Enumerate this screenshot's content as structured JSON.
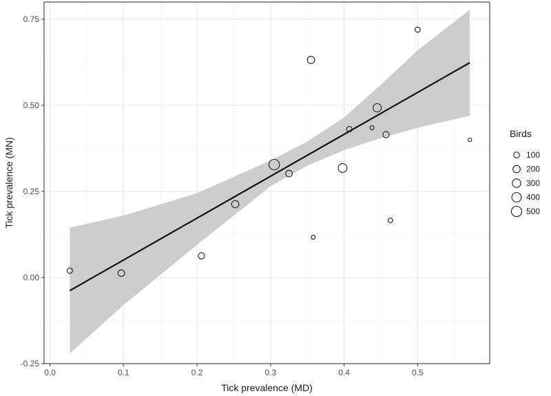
{
  "chart_data": {
    "type": "scatter",
    "title": "",
    "xlabel": "Tick prevalence (MD)",
    "ylabel": "Tick prevalence (MN)",
    "xlim": [
      -0.008,
      0.598
    ],
    "ylim": [
      -0.25,
      0.8
    ],
    "x_ticks": [
      0.0,
      0.1,
      0.2,
      0.3,
      0.4,
      0.5
    ],
    "x_tick_labels": [
      "0.0",
      "0.1",
      "0.2",
      "0.3",
      "0.4",
      "0.5"
    ],
    "y_ticks": [
      -0.25,
      0.0,
      0.25,
      0.5,
      0.75
    ],
    "y_tick_labels": [
      "-0.25",
      "0.00",
      "0.25",
      "0.50",
      "0.75"
    ],
    "grid": true,
    "points": [
      {
        "x": 0.027,
        "y": 0.02,
        "birds": 80
      },
      {
        "x": 0.097,
        "y": 0.013,
        "birds": 150
      },
      {
        "x": 0.206,
        "y": 0.063,
        "birds": 130
      },
      {
        "x": 0.252,
        "y": 0.213,
        "birds": 200
      },
      {
        "x": 0.305,
        "y": 0.328,
        "birds": 520
      },
      {
        "x": 0.325,
        "y": 0.302,
        "birds": 150
      },
      {
        "x": 0.355,
        "y": 0.632,
        "birds": 200
      },
      {
        "x": 0.358,
        "y": 0.117,
        "birds": 25
      },
      {
        "x": 0.398,
        "y": 0.318,
        "birds": 330
      },
      {
        "x": 0.407,
        "y": 0.431,
        "birds": 80
      },
      {
        "x": 0.438,
        "y": 0.435,
        "birds": 25
      },
      {
        "x": 0.445,
        "y": 0.493,
        "birds": 280
      },
      {
        "x": 0.457,
        "y": 0.415,
        "birds": 130
      },
      {
        "x": 0.463,
        "y": 0.166,
        "birds": 45
      },
      {
        "x": 0.5,
        "y": 0.72,
        "birds": 70
      },
      {
        "x": 0.571,
        "y": 0.4,
        "birds": 15
      }
    ],
    "fit_line": {
      "x": [
        0.027,
        0.571
      ],
      "y": [
        -0.038,
        0.624
      ]
    },
    "confidence_band": {
      "x": [
        0.027,
        0.1,
        0.2,
        0.3,
        0.35,
        0.4,
        0.45,
        0.5,
        0.571
      ],
      "lower": [
        -0.22,
        -0.08,
        0.095,
        0.265,
        0.325,
        0.37,
        0.405,
        0.435,
        0.47
      ],
      "upper": [
        0.145,
        0.18,
        0.245,
        0.34,
        0.395,
        0.465,
        0.56,
        0.66,
        0.778
      ]
    },
    "legend": {
      "title": "Birds",
      "position": "right",
      "entries": [
        {
          "label": "100",
          "birds": 100
        },
        {
          "label": "200",
          "birds": 200
        },
        {
          "label": "300",
          "birds": 300
        },
        {
          "label": "400",
          "birds": 400
        },
        {
          "label": "500",
          "birds": 500
        }
      ]
    },
    "colors": {
      "band": "#c8c8c8",
      "line": "#111111",
      "point_stroke": "#1a1a1a",
      "grid_major": "#e6e6e6",
      "grid_minor": "#f2f2f2",
      "panel_border": "#333333"
    }
  }
}
